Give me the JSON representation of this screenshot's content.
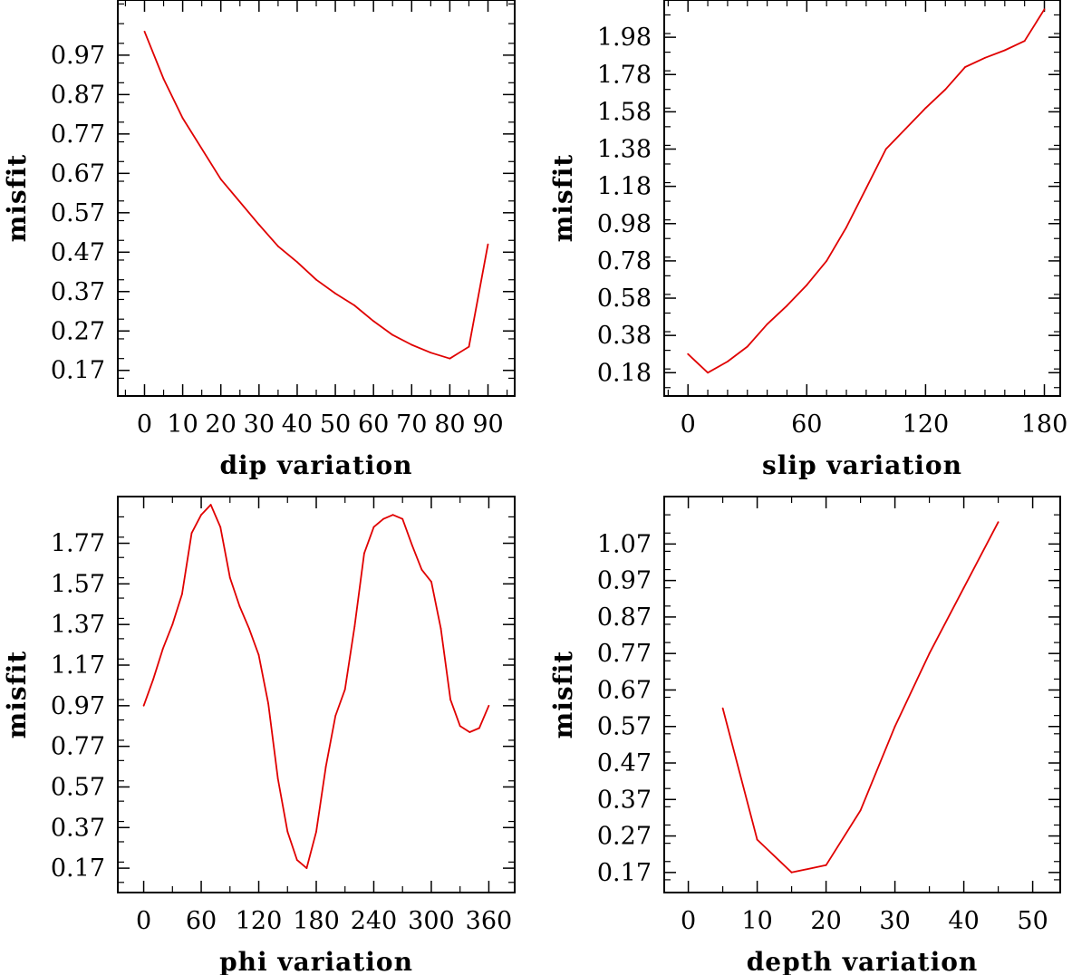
{
  "chart_data": [
    {
      "type": "line",
      "title": "",
      "xlabel": "dip    variation",
      "ylabel": "misfit",
      "xlim": [
        -7,
        97
      ],
      "ylim": [
        0.105,
        1.11
      ],
      "x_ticks": [
        0,
        10,
        20,
        30,
        40,
        50,
        60,
        70,
        80,
        90
      ],
      "x_tick_labels": [
        "0",
        "10",
        "20",
        "30",
        "40",
        "50",
        "60",
        "70",
        "80",
        "90"
      ],
      "x_minor_step": 5,
      "y_ticks": [
        0.17,
        0.27,
        0.37,
        0.47,
        0.57,
        0.67,
        0.77,
        0.87,
        0.97
      ],
      "y_tick_labels": [
        "0.17",
        "0.27",
        "0.37",
        "0.47",
        "0.57",
        "0.67",
        "0.77",
        "0.87",
        "0.97"
      ],
      "y_minor_step": 0.05,
      "color": "#e00000",
      "series": [
        {
          "name": "misfit",
          "x": [
            0,
            5,
            10,
            20,
            30,
            35,
            40,
            45,
            50,
            55,
            60,
            65,
            70,
            75,
            80,
            85,
            90
          ],
          "y": [
            1.03,
            0.91,
            0.81,
            0.655,
            0.54,
            0.485,
            0.445,
            0.4,
            0.365,
            0.335,
            0.295,
            0.26,
            0.235,
            0.215,
            0.2,
            0.23,
            0.49
          ]
        }
      ]
    },
    {
      "type": "line",
      "title": "",
      "xlabel": "slip   variation",
      "ylabel": "misfit",
      "xlim": [
        -12,
        188
      ],
      "ylim": [
        0.055,
        2.18
      ],
      "x_ticks": [
        0,
        60,
        120,
        180
      ],
      "x_tick_labels": [
        "0",
        "60",
        "120",
        "180"
      ],
      "x_minor_step": 10,
      "y_ticks": [
        0.18,
        0.38,
        0.58,
        0.78,
        0.98,
        1.18,
        1.38,
        1.58,
        1.78,
        1.98
      ],
      "y_tick_labels": [
        "0.18",
        "0.38",
        "0.58",
        "0.78",
        "0.98",
        "1.18",
        "1.38",
        "1.58",
        "1.78",
        "1.98"
      ],
      "y_minor_step": 0.1,
      "color": "#e00000",
      "series": [
        {
          "name": "misfit",
          "x": [
            0,
            10,
            20,
            30,
            40,
            50,
            60,
            70,
            80,
            90,
            100,
            110,
            120,
            130,
            140,
            150,
            160,
            170,
            180
          ],
          "y": [
            0.28,
            0.18,
            0.24,
            0.32,
            0.44,
            0.54,
            0.65,
            0.78,
            0.96,
            1.17,
            1.38,
            1.49,
            1.6,
            1.7,
            1.82,
            1.87,
            1.91,
            1.96,
            2.13
          ]
        }
      ]
    },
    {
      "type": "line",
      "title": "",
      "xlabel": "phi    variation",
      "ylabel": "misfit",
      "xlim": [
        -27,
        387
      ],
      "ylim": [
        0.05,
        2.0
      ],
      "x_ticks": [
        0,
        60,
        120,
        180,
        240,
        300,
        360
      ],
      "x_tick_labels": [
        "0",
        "60",
        "120",
        "180",
        "240",
        "300",
        "360"
      ],
      "x_minor_step": 30,
      "y_ticks": [
        0.17,
        0.37,
        0.57,
        0.77,
        0.97,
        1.17,
        1.37,
        1.57,
        1.77
      ],
      "y_tick_labels": [
        "0.17",
        "0.37",
        "0.57",
        "0.77",
        "0.97",
        "1.17",
        "1.37",
        "1.57",
        "1.77"
      ],
      "y_minor_step": 0.1,
      "color": "#e00000",
      "series": [
        {
          "name": "misfit",
          "x": [
            0,
            10,
            20,
            30,
            40,
            50,
            60,
            70,
            80,
            90,
            100,
            110,
            120,
            130,
            140,
            150,
            160,
            170,
            180,
            190,
            200,
            210,
            220,
            230,
            240,
            250,
            260,
            270,
            280,
            290,
            300,
            310,
            320,
            330,
            340,
            350,
            360
          ],
          "y": [
            0.97,
            1.1,
            1.25,
            1.37,
            1.52,
            1.82,
            1.91,
            1.96,
            1.85,
            1.6,
            1.46,
            1.35,
            1.22,
            0.98,
            0.61,
            0.35,
            0.21,
            0.17,
            0.35,
            0.67,
            0.92,
            1.05,
            1.36,
            1.72,
            1.85,
            1.89,
            1.91,
            1.89,
            1.76,
            1.64,
            1.58,
            1.35,
            1.0,
            0.87,
            0.84,
            0.86,
            0.97
          ]
        }
      ]
    },
    {
      "type": "line",
      "title": "",
      "xlabel": "depth  variation",
      "ylabel": "misfit",
      "xlim": [
        -3.5,
        54
      ],
      "ylim": [
        0.115,
        1.2
      ],
      "x_ticks": [
        0,
        10,
        20,
        30,
        40,
        50
      ],
      "x_tick_labels": [
        "0",
        "10",
        "20",
        "30",
        "40",
        "50"
      ],
      "x_minor_step": 5,
      "y_ticks": [
        0.17,
        0.27,
        0.37,
        0.47,
        0.57,
        0.67,
        0.77,
        0.87,
        0.97,
        1.07
      ],
      "y_tick_labels": [
        "0.17",
        "0.27",
        "0.37",
        "0.47",
        "0.57",
        "0.67",
        "0.77",
        "0.87",
        "0.97",
        "1.07"
      ],
      "y_minor_step": 0.05,
      "color": "#e00000",
      "series": [
        {
          "name": "misfit",
          "x": [
            5,
            10,
            15,
            20,
            25,
            30,
            35,
            40,
            45
          ],
          "y": [
            0.62,
            0.26,
            0.17,
            0.19,
            0.34,
            0.57,
            0.77,
            0.95,
            1.13
          ]
        }
      ]
    }
  ]
}
